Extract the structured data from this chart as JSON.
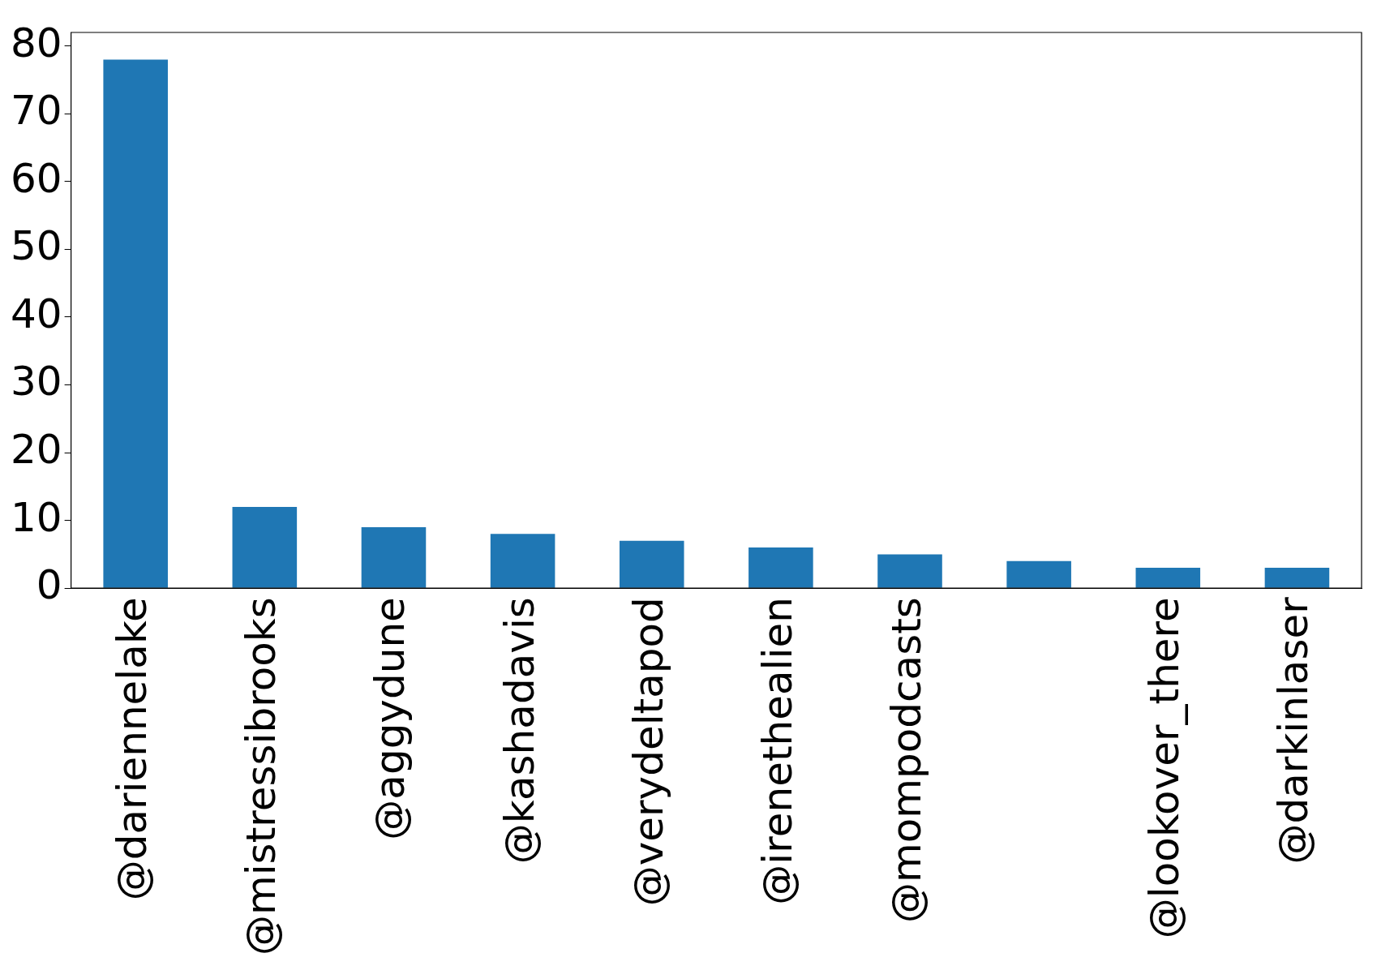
{
  "chart_data": {
    "type": "bar",
    "categories": [
      "@dariennelake",
      "@mistressibrooks",
      "@aggydune",
      "@kashadavis",
      "@verydeltapod",
      "@irenethealien",
      "@mompodcasts",
      null,
      "@lookover_there",
      "@darkinlaser"
    ],
    "values": [
      78,
      12,
      9,
      8,
      7,
      6,
      5,
      4,
      3,
      3
    ],
    "color": "#1f77b4",
    "ylim": [
      0,
      82
    ],
    "yticks": [
      0,
      10,
      20,
      30,
      40,
      50,
      60,
      70,
      80
    ],
    "grid": false,
    "legend": false
  }
}
